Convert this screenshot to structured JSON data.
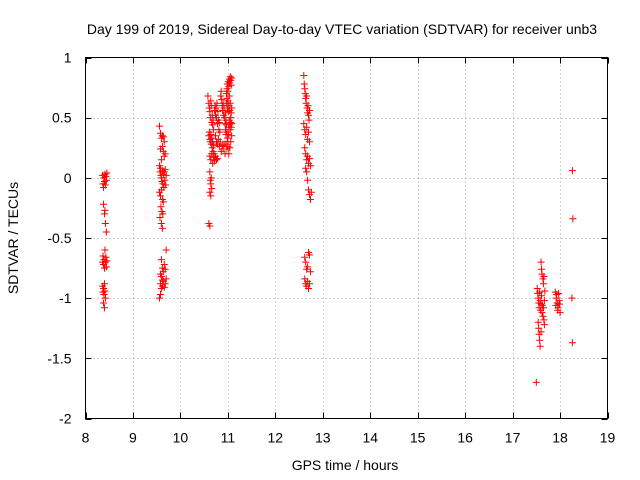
{
  "chart_data": {
    "type": "scatter",
    "title": "Day 199 of 2019, Sidereal Day-to-day VTEC variation (SDTVAR) for receiver unb3",
    "xlabel": "GPS time / hours",
    "ylabel": "SDTVAR / TECUs",
    "xlim": [
      8,
      19
    ],
    "ylim": [
      -2,
      1
    ],
    "xticks": [
      8,
      9,
      10,
      11,
      12,
      13,
      14,
      15,
      16,
      17,
      18,
      19
    ],
    "yticks": [
      -2,
      -1.5,
      -1,
      -0.5,
      0,
      0.5,
      1
    ],
    "xtick_labels": [
      "8",
      "9",
      "10",
      "11",
      "12",
      "13",
      "14",
      "15",
      "16",
      "17",
      "18",
      "19"
    ],
    "ytick_labels": [
      "-2",
      "-1.5",
      "-1",
      "-0.5",
      "0",
      "0.5",
      "1"
    ],
    "grid": true,
    "marker": "+",
    "marker_color": "#ff0000",
    "series": [
      {
        "name": "SDTVAR",
        "points": [
          [
            8.36,
            0.02
          ],
          [
            8.37,
            -0.05
          ],
          [
            8.38,
            -0.08
          ],
          [
            8.39,
            0.0
          ],
          [
            8.4,
            -0.03
          ],
          [
            8.41,
            0.03
          ],
          [
            8.42,
            -0.06
          ],
          [
            8.43,
            0.01
          ],
          [
            8.44,
            -0.02
          ],
          [
            8.45,
            0.04
          ],
          [
            8.38,
            -0.22
          ],
          [
            8.4,
            -0.3
          ],
          [
            8.42,
            -0.38
          ],
          [
            8.44,
            -0.45
          ],
          [
            8.41,
            -0.27
          ],
          [
            8.36,
            -0.7
          ],
          [
            8.37,
            -0.65
          ],
          [
            8.38,
            -0.72
          ],
          [
            8.39,
            -0.68
          ],
          [
            8.4,
            -0.75
          ],
          [
            8.41,
            -0.6
          ],
          [
            8.42,
            -0.7
          ],
          [
            8.43,
            -0.66
          ],
          [
            8.44,
            -0.74
          ],
          [
            8.45,
            -0.69
          ],
          [
            8.36,
            -0.9
          ],
          [
            8.37,
            -0.95
          ],
          [
            8.38,
            -0.92
          ],
          [
            8.39,
            -0.97
          ],
          [
            8.4,
            -0.88
          ],
          [
            8.41,
            -0.94
          ],
          [
            8.42,
            -1.0
          ],
          [
            8.38,
            -1.04
          ],
          [
            8.4,
            -1.08
          ],
          [
            9.56,
            0.43
          ],
          [
            9.58,
            0.37
          ],
          [
            9.6,
            0.33
          ],
          [
            9.62,
            0.35
          ],
          [
            9.64,
            0.34
          ],
          [
            9.66,
            0.3
          ],
          [
            9.62,
            0.26
          ],
          [
            9.58,
            0.24
          ],
          [
            9.64,
            0.22
          ],
          [
            9.66,
            0.18
          ],
          [
            9.68,
            0.2
          ],
          [
            9.6,
            0.15
          ],
          [
            9.56,
            0.1
          ],
          [
            9.57,
            0.05
          ],
          [
            9.58,
            0.08
          ],
          [
            9.59,
            0.02
          ],
          [
            9.6,
            0.0
          ],
          [
            9.61,
            -0.03
          ],
          [
            9.62,
            0.06
          ],
          [
            9.63,
            -0.05
          ],
          [
            9.64,
            0.03
          ],
          [
            9.65,
            -0.08
          ],
          [
            9.66,
            0.05
          ],
          [
            9.67,
            -0.02
          ],
          [
            9.68,
            0.07
          ],
          [
            9.69,
            -0.06
          ],
          [
            9.7,
            0.02
          ],
          [
            9.56,
            -0.12
          ],
          [
            9.58,
            -0.15
          ],
          [
            9.6,
            -0.1
          ],
          [
            9.62,
            -0.18
          ],
          [
            9.64,
            -0.2
          ],
          [
            9.59,
            -0.24
          ],
          [
            9.61,
            -0.28
          ],
          [
            9.63,
            -0.3
          ],
          [
            9.57,
            -0.33
          ],
          [
            9.6,
            -0.38
          ],
          [
            9.62,
            -0.42
          ],
          [
            9.6,
            -0.68
          ],
          [
            9.62,
            -0.75
          ],
          [
            9.64,
            -0.78
          ],
          [
            9.66,
            -0.72
          ],
          [
            9.68,
            -0.76
          ],
          [
            9.7,
            -0.6
          ],
          [
            9.58,
            -0.8
          ],
          [
            9.6,
            -0.82
          ],
          [
            9.62,
            -0.85
          ],
          [
            9.58,
            -0.88
          ],
          [
            9.6,
            -0.92
          ],
          [
            9.62,
            -0.9
          ],
          [
            9.64,
            -0.86
          ],
          [
            9.66,
            -0.91
          ],
          [
            9.68,
            -0.88
          ],
          [
            9.7,
            -0.84
          ],
          [
            9.56,
            -1.0
          ],
          [
            9.58,
            -0.97
          ],
          [
            10.58,
            0.68
          ],
          [
            10.6,
            0.62
          ],
          [
            10.61,
            0.58
          ],
          [
            10.62,
            0.55
          ],
          [
            10.63,
            0.5
          ],
          [
            10.64,
            0.64
          ],
          [
            10.65,
            0.6
          ],
          [
            10.66,
            0.46
          ],
          [
            10.67,
            0.52
          ],
          [
            10.68,
            0.44
          ],
          [
            10.69,
            0.48
          ],
          [
            10.7,
            0.4
          ],
          [
            10.6,
            0.35
          ],
          [
            10.61,
            0.38
          ],
          [
            10.62,
            0.32
          ],
          [
            10.63,
            0.3
          ],
          [
            10.64,
            0.36
          ],
          [
            10.65,
            0.28
          ],
          [
            10.66,
            0.33
          ],
          [
            10.67,
            0.25
          ],
          [
            10.68,
            0.3
          ],
          [
            10.69,
            0.22
          ],
          [
            10.7,
            0.27
          ],
          [
            10.71,
            0.2
          ],
          [
            10.62,
            0.18
          ],
          [
            10.64,
            0.15
          ],
          [
            10.66,
            0.2
          ],
          [
            10.68,
            0.12
          ],
          [
            10.7,
            0.17
          ],
          [
            10.72,
            0.14
          ],
          [
            10.74,
            0.18
          ],
          [
            10.76,
            0.15
          ],
          [
            10.78,
            0.16
          ],
          [
            10.62,
            0.05
          ],
          [
            10.63,
            -0.02
          ],
          [
            10.64,
            -0.05
          ],
          [
            10.65,
            0.0
          ],
          [
            10.66,
            -0.09
          ],
          [
            10.62,
            -0.12
          ],
          [
            10.64,
            -0.15
          ],
          [
            10.6,
            -0.38
          ],
          [
            10.62,
            -0.4
          ],
          [
            10.72,
            0.56
          ],
          [
            10.73,
            0.6
          ],
          [
            10.74,
            0.52
          ],
          [
            10.75,
            0.58
          ],
          [
            10.76,
            0.5
          ],
          [
            10.77,
            0.62
          ],
          [
            10.78,
            0.45
          ],
          [
            10.79,
            0.55
          ],
          [
            10.8,
            0.48
          ],
          [
            10.81,
            0.4
          ],
          [
            10.82,
            0.46
          ],
          [
            10.83,
            0.38
          ],
          [
            10.74,
            0.35
          ],
          [
            10.76,
            0.3
          ],
          [
            10.78,
            0.28
          ],
          [
            10.8,
            0.32
          ],
          [
            10.82,
            0.26
          ],
          [
            10.84,
            0.3
          ],
          [
            10.86,
            0.22
          ],
          [
            10.88,
            0.27
          ],
          [
            10.9,
            0.24
          ],
          [
            10.92,
            0.28
          ],
          [
            10.94,
            0.2
          ],
          [
            10.85,
            0.68
          ],
          [
            10.86,
            0.72
          ],
          [
            10.87,
            0.65
          ],
          [
            10.88,
            0.6
          ],
          [
            10.89,
            0.56
          ],
          [
            10.9,
            0.62
          ],
          [
            10.91,
            0.52
          ],
          [
            10.92,
            0.58
          ],
          [
            10.93,
            0.5
          ],
          [
            10.94,
            0.45
          ],
          [
            10.95,
            0.54
          ],
          [
            10.96,
            0.48
          ],
          [
            10.97,
            0.7
          ],
          [
            10.98,
            0.74
          ],
          [
            10.99,
            0.78
          ],
          [
            11.0,
            0.72
          ],
          [
            11.01,
            0.8
          ],
          [
            11.02,
            0.76
          ],
          [
            11.03,
            0.82
          ],
          [
            11.04,
            0.79
          ],
          [
            11.05,
            0.84
          ],
          [
            11.06,
            0.81
          ],
          [
            11.07,
            0.77
          ],
          [
            11.08,
            0.83
          ],
          [
            10.97,
            0.62
          ],
          [
            10.98,
            0.66
          ],
          [
            10.99,
            0.58
          ],
          [
            11.0,
            0.64
          ],
          [
            11.01,
            0.55
          ],
          [
            11.02,
            0.6
          ],
          [
            11.03,
            0.68
          ],
          [
            11.04,
            0.56
          ],
          [
            11.05,
            0.62
          ],
          [
            11.06,
            0.5
          ],
          [
            11.07,
            0.54
          ],
          [
            11.08,
            0.58
          ],
          [
            10.95,
            0.4
          ],
          [
            10.96,
            0.36
          ],
          [
            10.97,
            0.44
          ],
          [
            10.98,
            0.38
          ],
          [
            10.99,
            0.33
          ],
          [
            11.0,
            0.3
          ],
          [
            11.01,
            0.36
          ],
          [
            11.02,
            0.42
          ],
          [
            11.03,
            0.48
          ],
          [
            11.04,
            0.44
          ],
          [
            11.05,
            0.4
          ],
          [
            11.06,
            0.46
          ],
          [
            11.07,
            0.42
          ],
          [
            11.08,
            0.45
          ],
          [
            10.96,
            0.28
          ],
          [
            10.98,
            0.24
          ],
          [
            11.0,
            0.26
          ],
          [
            11.02,
            0.2
          ],
          [
            11.04,
            0.25
          ],
          [
            11.06,
            0.3
          ],
          [
            11.08,
            0.35
          ],
          [
            12.6,
            0.85
          ],
          [
            12.61,
            0.78
          ],
          [
            12.62,
            0.74
          ],
          [
            12.63,
            0.7
          ],
          [
            12.64,
            0.66
          ],
          [
            12.65,
            0.62
          ],
          [
            12.66,
            0.68
          ],
          [
            12.67,
            0.58
          ],
          [
            12.68,
            0.54
          ],
          [
            12.69,
            0.6
          ],
          [
            12.7,
            0.52
          ],
          [
            12.71,
            0.48
          ],
          [
            12.72,
            0.56
          ],
          [
            12.6,
            0.45
          ],
          [
            12.62,
            0.4
          ],
          [
            12.64,
            0.36
          ],
          [
            12.66,
            0.42
          ],
          [
            12.68,
            0.32
          ],
          [
            12.7,
            0.38
          ],
          [
            12.72,
            0.3
          ],
          [
            12.62,
            0.25
          ],
          [
            12.64,
            0.2
          ],
          [
            12.66,
            0.15
          ],
          [
            12.68,
            0.18
          ],
          [
            12.7,
            0.12
          ],
          [
            12.72,
            0.16
          ],
          [
            12.74,
            0.1
          ],
          [
            12.64,
            0.08
          ],
          [
            12.66,
            0.05
          ],
          [
            12.68,
            -0.02
          ],
          [
            12.7,
            -0.1
          ],
          [
            12.72,
            -0.14
          ],
          [
            12.74,
            -0.18
          ],
          [
            12.76,
            -0.12
          ],
          [
            12.62,
            -0.66
          ],
          [
            12.64,
            -0.7
          ],
          [
            12.66,
            -0.76
          ],
          [
            12.68,
            -0.74
          ],
          [
            12.7,
            -0.62
          ],
          [
            12.72,
            -0.64
          ],
          [
            12.74,
            -0.78
          ],
          [
            12.62,
            -0.84
          ],
          [
            12.64,
            -0.88
          ],
          [
            12.66,
            -0.9
          ],
          [
            12.68,
            -0.86
          ],
          [
            12.7,
            -0.92
          ],
          [
            12.72,
            -0.88
          ],
          [
            17.5,
            -1.7
          ],
          [
            17.52,
            -0.92
          ],
          [
            17.53,
            -0.96
          ],
          [
            17.54,
            -1.0
          ],
          [
            17.55,
            -1.04
          ],
          [
            17.56,
            -1.08
          ],
          [
            17.57,
            -0.95
          ],
          [
            17.58,
            -1.02
          ],
          [
            17.59,
            -1.1
          ],
          [
            17.6,
            -1.05
          ],
          [
            17.61,
            -0.98
          ],
          [
            17.62,
            -1.12
          ],
          [
            17.63,
            -1.06
          ],
          [
            17.64,
            -1.15
          ],
          [
            17.65,
            -1.08
          ],
          [
            17.66,
            -1.18
          ],
          [
            17.67,
            -1.02
          ],
          [
            17.68,
            -0.94
          ],
          [
            17.54,
            -1.2
          ],
          [
            17.55,
            -1.25
          ],
          [
            17.56,
            -1.3
          ],
          [
            17.57,
            -1.35
          ],
          [
            17.58,
            -1.4
          ],
          [
            17.6,
            -1.28
          ],
          [
            17.6,
            -0.7
          ],
          [
            17.61,
            -0.76
          ],
          [
            17.62,
            -0.8
          ],
          [
            17.64,
            -0.84
          ],
          [
            17.65,
            -0.88
          ],
          [
            17.66,
            -0.82
          ],
          [
            17.67,
            -1.22
          ],
          [
            17.9,
            -0.95
          ],
          [
            17.92,
            -1.0
          ],
          [
            17.94,
            -1.04
          ],
          [
            17.96,
            -1.08
          ],
          [
            17.98,
            -1.02
          ],
          [
            18.0,
            -1.12
          ],
          [
            17.91,
            -1.06
          ],
          [
            17.93,
            -0.97
          ],
          [
            17.95,
            -1.1
          ],
          [
            17.97,
            -0.96
          ],
          [
            17.99,
            -1.05
          ],
          [
            18.26,
            0.06
          ],
          [
            18.27,
            -0.34
          ],
          [
            18.25,
            -1.0
          ],
          [
            18.26,
            -1.37
          ]
        ]
      }
    ]
  }
}
